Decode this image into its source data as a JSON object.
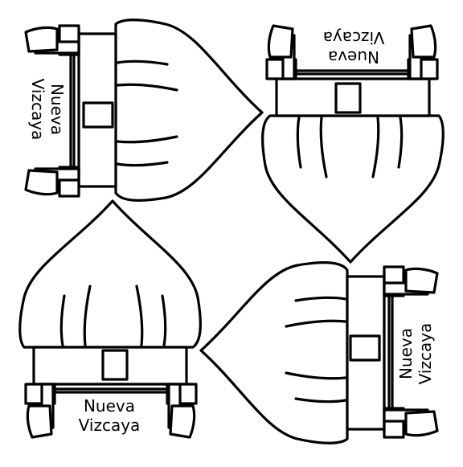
{
  "label": {
    "line1": "Nueva",
    "line2": "Vizcaya"
  },
  "colors": {
    "stroke": "#000000",
    "background": "#ffffff"
  },
  "figure": {
    "motif": "hut-icon",
    "copies": 4
  }
}
